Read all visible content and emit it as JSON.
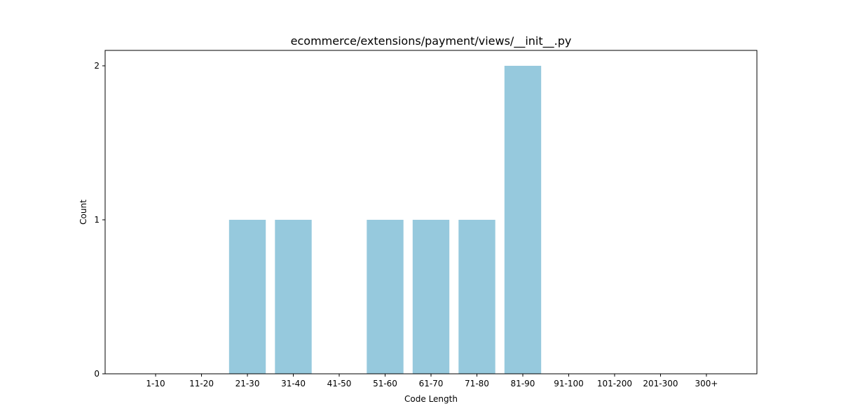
{
  "chart_data": {
    "type": "bar",
    "title": "ecommerce/extensions/payment/views/__init__.py",
    "xlabel": "Code Length",
    "ylabel": "Count",
    "categories": [
      "1-10",
      "11-20",
      "21-30",
      "31-40",
      "41-50",
      "51-60",
      "61-70",
      "71-80",
      "81-90",
      "91-100",
      "101-200",
      "201-300",
      "300+"
    ],
    "values": [
      0,
      0,
      1,
      1,
      0,
      1,
      1,
      1,
      2,
      0,
      0,
      0,
      0
    ],
    "ylim": [
      0,
      2.1
    ],
    "yticks": [
      "0",
      "1",
      "2"
    ],
    "grid": false,
    "bar_color": "#96c9dd"
  }
}
